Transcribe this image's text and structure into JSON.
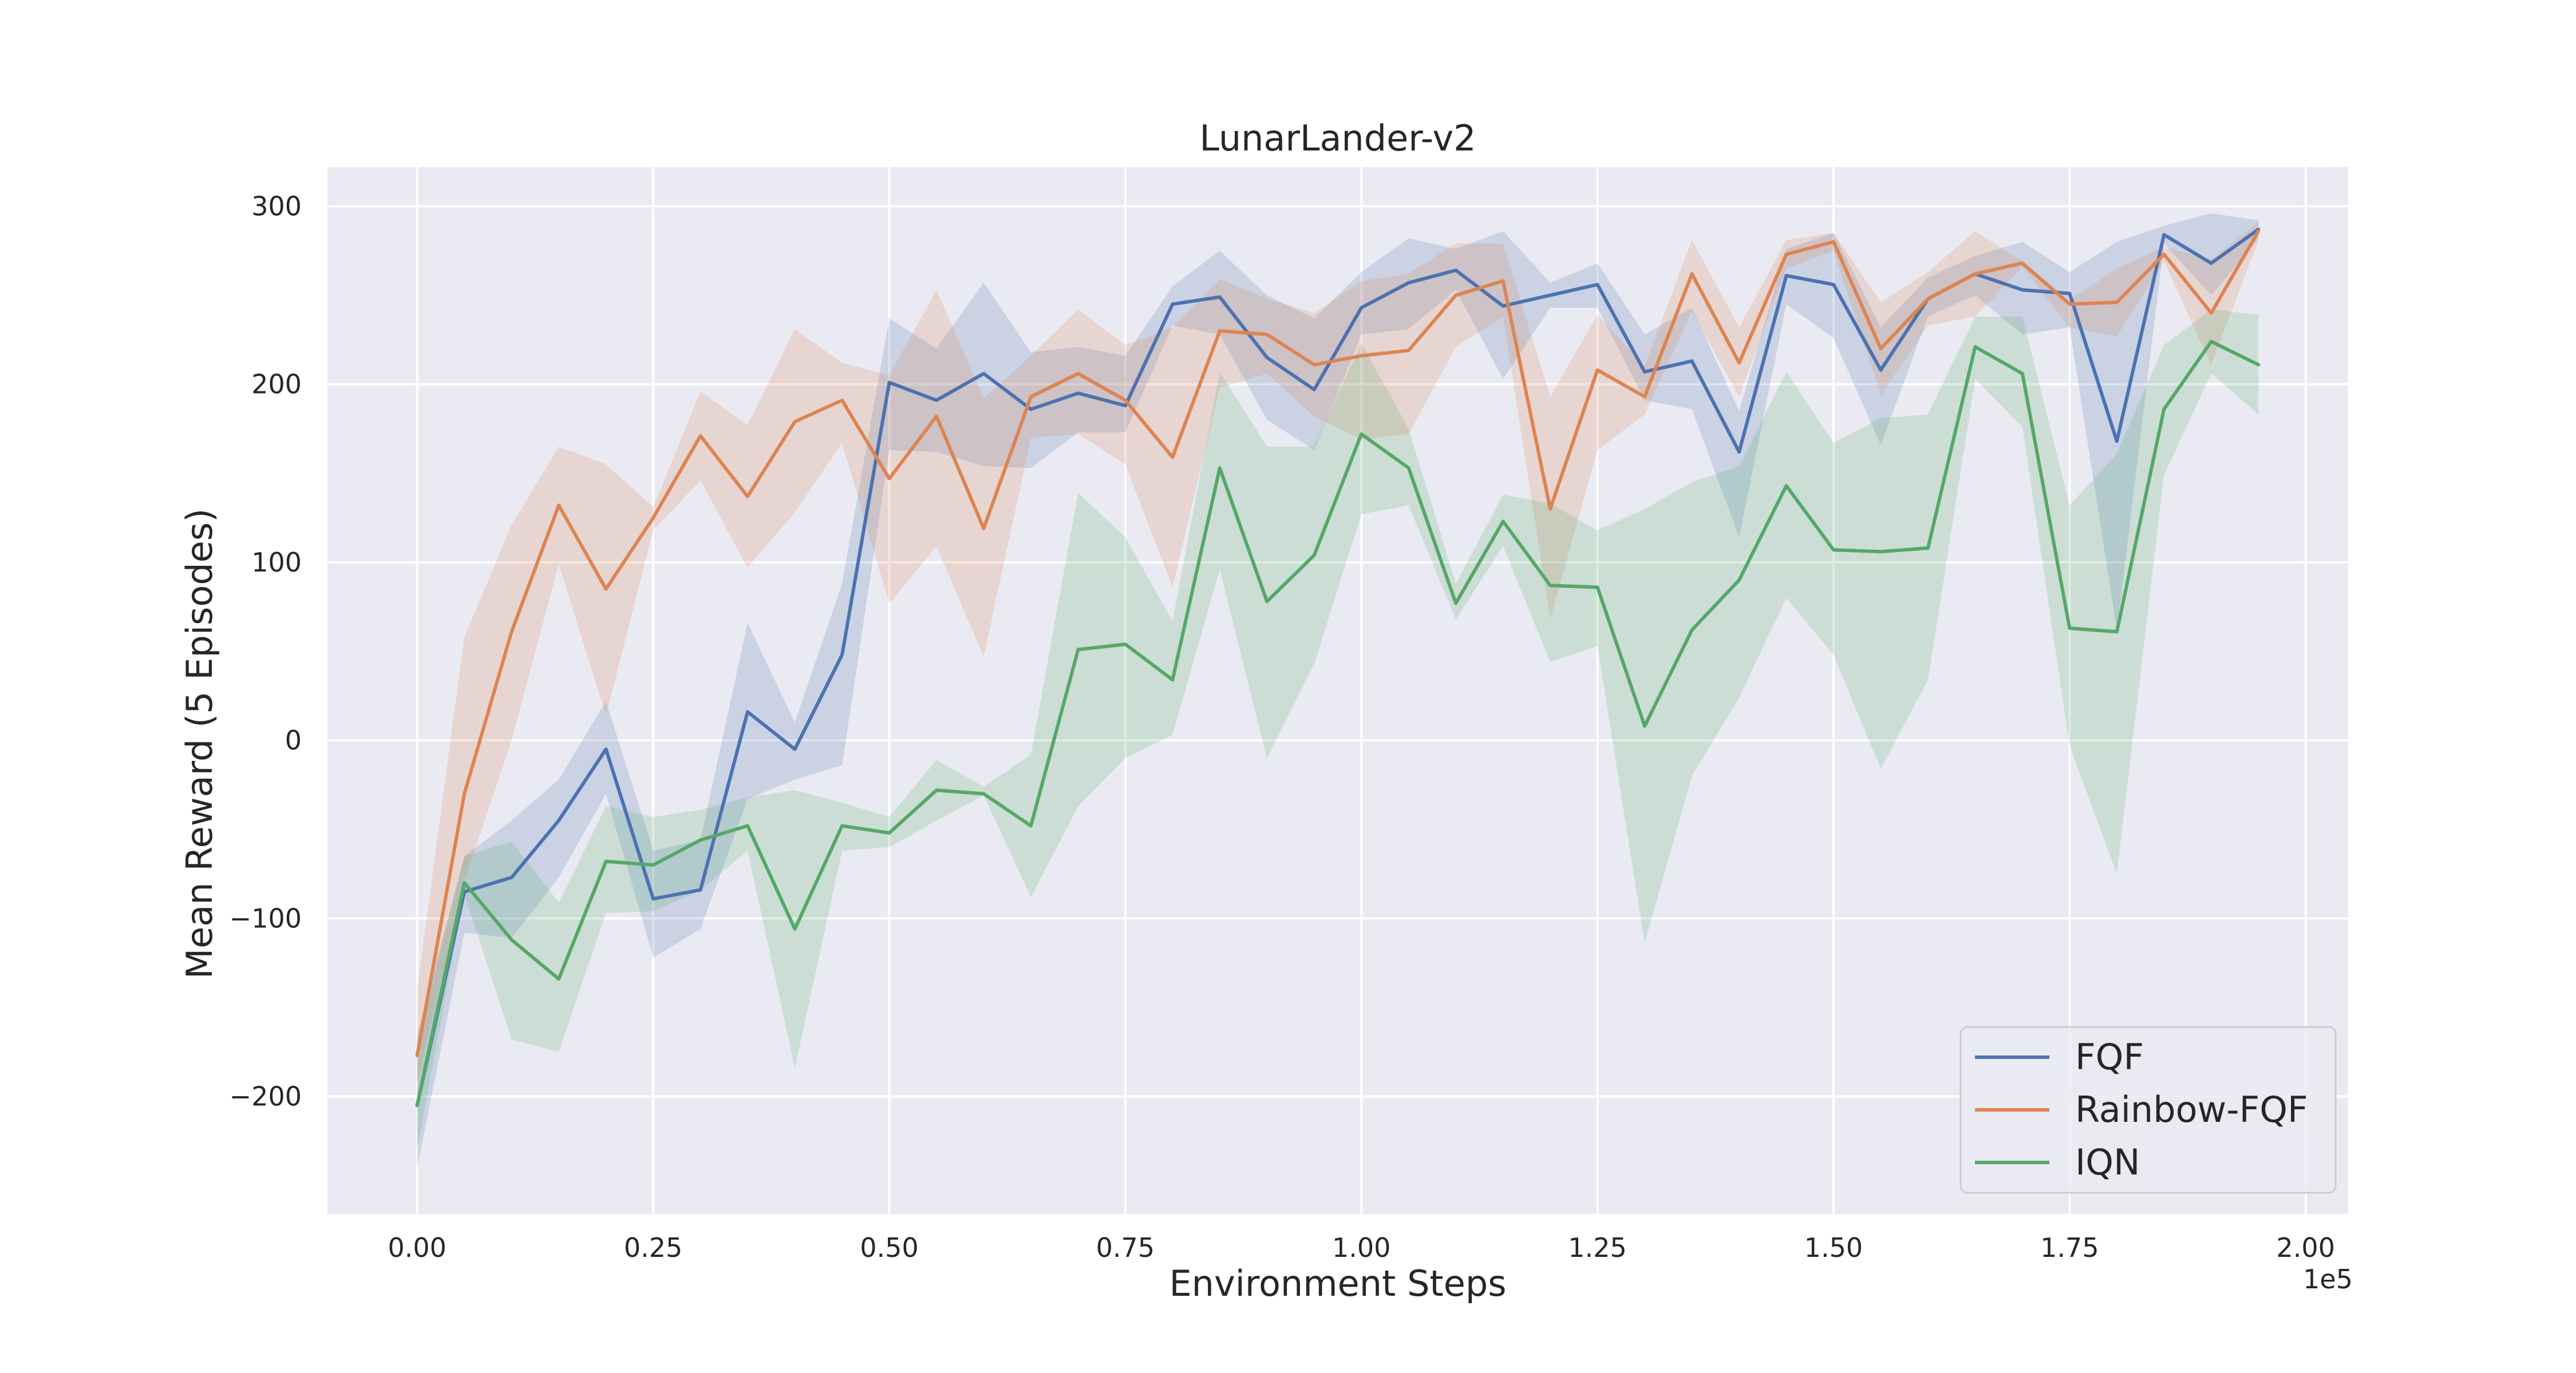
{
  "chart_data": {
    "type": "line",
    "title": "LunarLander-v2",
    "xlabel": "Environment Steps",
    "ylabel": "Mean Reward (5 Episodes)",
    "x_offset_label": "1e5",
    "xlim": [
      -0.095,
      2.045
    ],
    "ylim": [
      -266,
      322
    ],
    "xticks": [
      0.0,
      0.25,
      0.5,
      0.75,
      1.0,
      1.25,
      1.5,
      1.75,
      2.0
    ],
    "xtick_labels": [
      "0.00",
      "0.25",
      "0.50",
      "0.75",
      "1.00",
      "1.25",
      "1.50",
      "1.75",
      "2.00"
    ],
    "yticks": [
      -200,
      -100,
      0,
      100,
      200,
      300
    ],
    "ytick_labels": [
      "−200",
      "−100",
      "0",
      "100",
      "200",
      "300"
    ],
    "grid": true,
    "legend_position": "bottom-right",
    "background": "#eaeaf2",
    "x": [
      0.0,
      0.05,
      0.1,
      0.15,
      0.2,
      0.25,
      0.3,
      0.35,
      0.4,
      0.45,
      0.5,
      0.55,
      0.6,
      0.65,
      0.7,
      0.75,
      0.8,
      0.85,
      0.9,
      0.95,
      1.0,
      1.05,
      1.1,
      1.15,
      1.2,
      1.25,
      1.3,
      1.35,
      1.4,
      1.45,
      1.5,
      1.55,
      1.6,
      1.65,
      1.7,
      1.75,
      1.8,
      1.85,
      1.9,
      1.95
    ],
    "series": [
      {
        "name": "FQF",
        "color": "#4c72b0",
        "values": [
          -205,
          -85,
          -77,
          -45,
          -5,
          -89,
          -84,
          16,
          -5,
          48,
          201,
          191,
          206,
          186,
          195,
          188,
          245,
          249,
          215,
          197,
          243,
          257,
          264,
          244,
          250,
          256,
          207,
          213,
          162,
          261,
          256,
          208,
          248,
          262,
          253,
          251,
          168,
          284,
          268,
          287
        ],
        "upper": [
          -165,
          -65,
          -45,
          -22,
          22,
          -62,
          -56,
          66,
          10,
          88,
          237,
          220,
          257,
          218,
          221,
          216,
          255,
          275,
          250,
          237,
          263,
          282,
          276,
          286,
          257,
          268,
          228,
          243,
          185,
          276,
          285,
          232,
          260,
          272,
          280,
          263,
          280,
          289,
          296,
          292
        ],
        "lower": [
          -240,
          -108,
          -111,
          -77,
          -30,
          -122,
          -106,
          -33,
          -22,
          -14,
          163,
          162,
          154,
          153,
          173,
          173,
          233,
          228,
          180,
          163,
          228,
          231,
          253,
          203,
          243,
          243,
          191,
          186,
          114,
          245,
          226,
          166,
          238,
          250,
          228,
          232,
          62,
          279,
          250,
          282
        ]
      },
      {
        "name": "Rainbow-FQF",
        "color": "#dd8452",
        "values": [
          -177,
          -30,
          61,
          132,
          85,
          125,
          171,
          137,
          179,
          191,
          147,
          182,
          119,
          193,
          206,
          191,
          159,
          230,
          228,
          211,
          216,
          219,
          250,
          258,
          130,
          208,
          193,
          262,
          212,
          273,
          280,
          220,
          248,
          262,
          268,
          245,
          246,
          273,
          240,
          286
        ],
        "upper": [
          -140,
          58,
          121,
          165,
          155,
          131,
          196,
          177,
          231,
          212,
          205,
          253,
          192,
          216,
          242,
          222,
          232,
          259,
          248,
          240,
          258,
          262,
          279,
          279,
          193,
          239,
          210,
          281,
          232,
          281,
          285,
          246,
          263,
          286,
          269,
          247,
          265,
          277,
          270,
          291
        ],
        "lower": [
          -193,
          -79,
          0,
          99,
          14,
          118,
          146,
          97,
          128,
          167,
          77,
          109,
          47,
          170,
          172,
          155,
          86,
          198,
          206,
          182,
          169,
          172,
          221,
          238,
          68,
          163,
          183,
          241,
          193,
          265,
          275,
          194,
          233,
          238,
          266,
          232,
          227,
          269,
          211,
          281
        ]
      },
      {
        "name": "IQN",
        "color": "#55a868",
        "values": [
          -205,
          -80,
          -112,
          -134,
          -68,
          -70,
          -56,
          -48,
          -106,
          -48,
          -52,
          -28,
          -30,
          -48,
          51,
          54,
          34,
          153,
          78,
          104,
          172,
          153,
          77,
          123,
          87,
          86,
          8,
          62,
          90,
          143,
          107,
          106,
          108,
          221,
          206,
          63,
          61,
          186,
          224,
          211
        ],
        "upper": [
          -170,
          -65,
          -57,
          -91,
          -37,
          -43,
          -39,
          -32,
          -28,
          -35,
          -43,
          -11,
          -26,
          -8,
          139,
          114,
          67,
          207,
          165,
          165,
          223,
          175,
          88,
          138,
          133,
          118,
          130,
          145,
          154,
          207,
          167,
          181,
          183,
          238,
          238,
          132,
          161,
          222,
          242,
          239
        ],
        "lower": [
          -230,
          -86,
          -168,
          -175,
          -97,
          -96,
          -84,
          -62,
          -184,
          -62,
          -60,
          -45,
          -31,
          -88,
          -37,
          -10,
          3,
          96,
          -10,
          43,
          127,
          132,
          68,
          109,
          44,
          53,
          -114,
          -20,
          24,
          80,
          48,
          -16,
          34,
          203,
          176,
          -3,
          -75,
          149,
          206,
          183
        ]
      }
    ]
  }
}
